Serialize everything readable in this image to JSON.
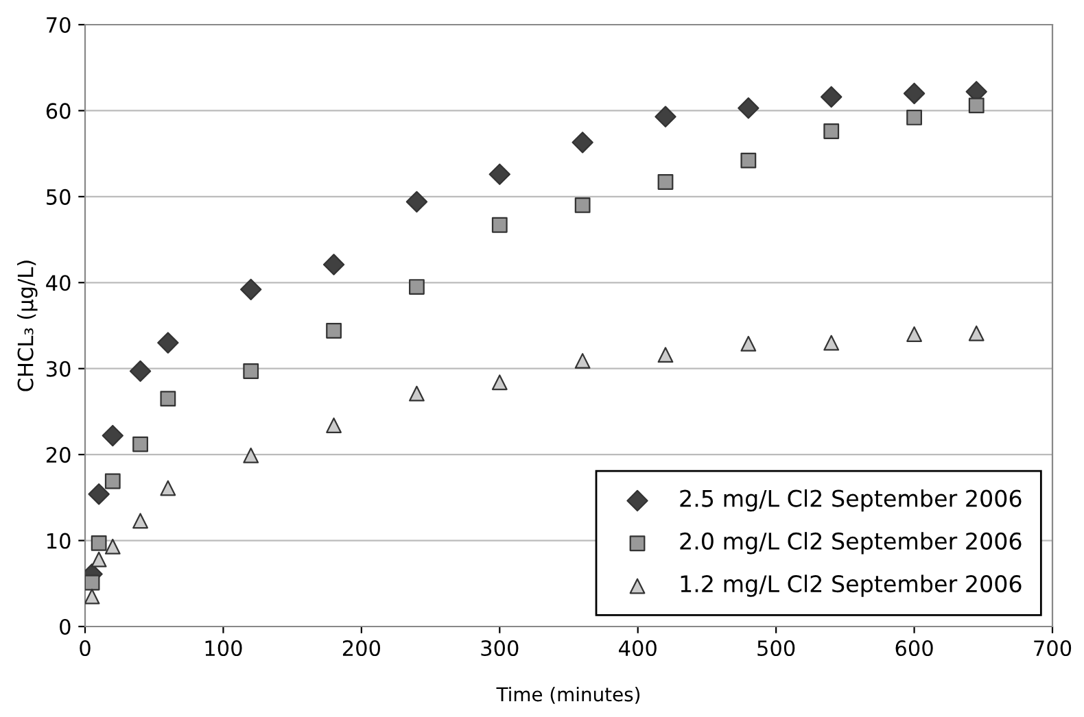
{
  "chart_data": {
    "type": "scatter",
    "xlabel": "Time (minutes)",
    "ylabel": "CHCL₃ (µg/L)",
    "x": [
      5,
      10,
      20,
      40,
      60,
      120,
      180,
      240,
      300,
      360,
      420,
      480,
      540,
      600,
      645
    ],
    "series": [
      {
        "name": "2.5 mg/L Cl2 September 2006",
        "color": "#404040",
        "marker": "diamond",
        "values": [
          6.1,
          15.4,
          22.2,
          29.7,
          33.0,
          39.2,
          42.1,
          49.4,
          52.6,
          56.3,
          59.3,
          60.3,
          61.6,
          62.0,
          62.2
        ]
      },
      {
        "name": "2.0 mg/L Cl2 September 2006",
        "color": "#999999",
        "marker": "square",
        "values": [
          5.1,
          9.7,
          16.9,
          21.2,
          26.5,
          29.7,
          34.4,
          39.5,
          46.7,
          49.0,
          51.7,
          54.2,
          57.6,
          59.2,
          60.6
        ]
      },
      {
        "name": "1.2 mg/L Cl2 September 2006",
        "color": "#cccccc",
        "marker": "triangle",
        "values": [
          3.5,
          7.8,
          9.3,
          12.3,
          16.1,
          19.9,
          23.4,
          27.1,
          28.4,
          30.9,
          31.6,
          32.9,
          33.0,
          34.0,
          34.1
        ]
      }
    ],
    "xlim": [
      0,
      700
    ],
    "xticks": [
      0,
      100,
      200,
      300,
      400,
      500,
      600,
      700
    ],
    "ylim": [
      0,
      70
    ],
    "yticks": [
      0,
      10,
      20,
      30,
      40,
      50,
      60,
      70
    ],
    "grid": "y",
    "legend": "bottom right"
  }
}
